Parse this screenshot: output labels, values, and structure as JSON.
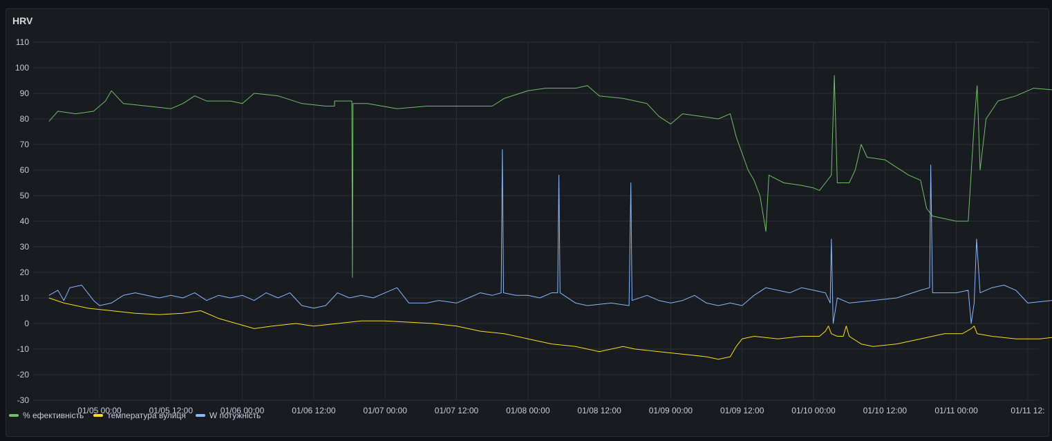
{
  "panel": {
    "title": "HRV"
  },
  "colors": {
    "efficiency": "#73bf69",
    "temperature": "#fade2a",
    "power": "#8ab8ff"
  },
  "chart_data": {
    "type": "line",
    "title": "HRV",
    "ylim": [
      -30,
      110
    ],
    "yticks": [
      110,
      100,
      90,
      80,
      70,
      60,
      50,
      40,
      30,
      20,
      10,
      0,
      -10,
      -20,
      -30
    ],
    "xticks": [
      "01/05 00:00",
      "01/05 12:00",
      "01/06 00:00",
      "01/06 12:00",
      "01/07 00:00",
      "01/07 12:00",
      "01/08 00:00",
      "01/08 12:00",
      "01/09 00:00",
      "01/09 12:00",
      "01/10 00:00",
      "01/10 12:00",
      "01/11 00:00",
      "01/11 12:"
    ],
    "xlim_hours": [
      -8.5,
      155.5
    ],
    "x_unit": "hours since 01/05 00:00",
    "grid": true,
    "legend_position": "bottom-left",
    "series": [
      {
        "name": "% ефективність",
        "color": "#73bf69",
        "points": [
          [
            -8.5,
            79
          ],
          [
            -7,
            83
          ],
          [
            -4,
            82
          ],
          [
            -1,
            83
          ],
          [
            1,
            87
          ],
          [
            2,
            91
          ],
          [
            4,
            86
          ],
          [
            8,
            85
          ],
          [
            12,
            84
          ],
          [
            14,
            86
          ],
          [
            16,
            89
          ],
          [
            18,
            87
          ],
          [
            22,
            87
          ],
          [
            24,
            86
          ],
          [
            26,
            90
          ],
          [
            30,
            89
          ],
          [
            34,
            86
          ],
          [
            38,
            85
          ],
          [
            39.5,
            85
          ],
          [
            39.5,
            87
          ],
          [
            42,
            87
          ],
          [
            42.4,
            87
          ],
          [
            42.5,
            18
          ],
          [
            42.6,
            86
          ],
          [
            45,
            86
          ],
          [
            50,
            84
          ],
          [
            55,
            85
          ],
          [
            60,
            85
          ],
          [
            66,
            85
          ],
          [
            68,
            88
          ],
          [
            72,
            91
          ],
          [
            75,
            92
          ],
          [
            80,
            92
          ],
          [
            82,
            93
          ],
          [
            84,
            89
          ],
          [
            88,
            88
          ],
          [
            92,
            86
          ],
          [
            94,
            81
          ],
          [
            96,
            78
          ],
          [
            98,
            82
          ],
          [
            101,
            81
          ],
          [
            104,
            80
          ],
          [
            106,
            82
          ],
          [
            107,
            73
          ],
          [
            109,
            60
          ],
          [
            110,
            56
          ],
          [
            111,
            50
          ],
          [
            112,
            36
          ],
          [
            112.5,
            58
          ],
          [
            115,
            55
          ],
          [
            118,
            54
          ],
          [
            120,
            53
          ],
          [
            121,
            52
          ],
          [
            122,
            55
          ],
          [
            123,
            58
          ],
          [
            123.5,
            97
          ],
          [
            124,
            55
          ],
          [
            126,
            55
          ],
          [
            127,
            60
          ],
          [
            128,
            70
          ],
          [
            129,
            65
          ],
          [
            132,
            64
          ],
          [
            136,
            58
          ],
          [
            138,
            56
          ],
          [
            139,
            45
          ],
          [
            140,
            42
          ],
          [
            144,
            40
          ],
          [
            146,
            40
          ],
          [
            147,
            78
          ],
          [
            147.5,
            93
          ],
          [
            148,
            60
          ],
          [
            149,
            80
          ],
          [
            151,
            87
          ],
          [
            154,
            89
          ],
          [
            157,
            92
          ],
          [
            162,
            91
          ],
          [
            165,
            89
          ],
          [
            166,
            86
          ],
          [
            168,
            84
          ],
          [
            169,
            87
          ],
          [
            170,
            89
          ]
        ]
      },
      {
        "name": "температура вулиця",
        "color": "#fade2a",
        "points": [
          [
            -8.5,
            10
          ],
          [
            -6,
            8
          ],
          [
            -2,
            6
          ],
          [
            2,
            5
          ],
          [
            6,
            4
          ],
          [
            10,
            3.5
          ],
          [
            14,
            4
          ],
          [
            17,
            5
          ],
          [
            20,
            2
          ],
          [
            23,
            0
          ],
          [
            26,
            -2
          ],
          [
            29,
            -1
          ],
          [
            33,
            0
          ],
          [
            36,
            -1
          ],
          [
            40,
            0
          ],
          [
            44,
            1
          ],
          [
            48,
            1
          ],
          [
            52,
            0.5
          ],
          [
            56,
            0
          ],
          [
            60,
            -1
          ],
          [
            64,
            -3
          ],
          [
            68,
            -4
          ],
          [
            72,
            -6
          ],
          [
            76,
            -8
          ],
          [
            80,
            -9
          ],
          [
            84,
            -11
          ],
          [
            86,
            -10
          ],
          [
            88,
            -9
          ],
          [
            90,
            -10
          ],
          [
            94,
            -11
          ],
          [
            98,
            -12
          ],
          [
            102,
            -13
          ],
          [
            104,
            -14
          ],
          [
            106,
            -13
          ],
          [
            107,
            -9
          ],
          [
            108,
            -6
          ],
          [
            110,
            -5
          ],
          [
            114,
            -6
          ],
          [
            118,
            -5
          ],
          [
            121,
            -5
          ],
          [
            122,
            -3
          ],
          [
            122.5,
            -1
          ],
          [
            123,
            -4
          ],
          [
            124,
            -5
          ],
          [
            125,
            -5
          ],
          [
            125.5,
            -1
          ],
          [
            126,
            -5
          ],
          [
            128,
            -8
          ],
          [
            130,
            -9
          ],
          [
            134,
            -8
          ],
          [
            138,
            -6
          ],
          [
            142,
            -4
          ],
          [
            145,
            -4
          ],
          [
            146.5,
            -2
          ],
          [
            147,
            -1
          ],
          [
            147.5,
            -4
          ],
          [
            150,
            -5
          ],
          [
            154,
            -6
          ],
          [
            158,
            -6
          ],
          [
            162,
            -5
          ],
          [
            165,
            -3
          ],
          [
            168,
            -1
          ],
          [
            170,
            0
          ]
        ]
      },
      {
        "name": "W потужність",
        "color": "#8ab8ff",
        "points": [
          [
            -8.5,
            11
          ],
          [
            -7,
            13
          ],
          [
            -6,
            9
          ],
          [
            -5,
            14
          ],
          [
            -3,
            15
          ],
          [
            -1,
            9
          ],
          [
            0,
            7
          ],
          [
            2,
            8
          ],
          [
            4,
            11
          ],
          [
            6,
            12
          ],
          [
            10,
            10
          ],
          [
            12,
            11
          ],
          [
            14,
            10
          ],
          [
            16,
            12
          ],
          [
            18,
            9
          ],
          [
            20,
            11
          ],
          [
            22,
            10
          ],
          [
            24,
            11
          ],
          [
            26,
            9
          ],
          [
            28,
            12
          ],
          [
            30,
            10
          ],
          [
            32,
            12
          ],
          [
            34,
            7
          ],
          [
            36,
            6
          ],
          [
            38,
            7
          ],
          [
            40,
            12
          ],
          [
            42,
            10
          ],
          [
            44,
            11
          ],
          [
            46,
            10
          ],
          [
            48,
            12
          ],
          [
            50,
            14
          ],
          [
            52,
            8
          ],
          [
            55,
            8
          ],
          [
            57,
            9
          ],
          [
            60,
            8
          ],
          [
            62,
            10
          ],
          [
            64,
            12
          ],
          [
            66,
            11
          ],
          [
            67.5,
            12
          ],
          [
            67.7,
            68
          ],
          [
            67.9,
            12
          ],
          [
            70,
            11
          ],
          [
            72,
            11
          ],
          [
            74,
            10
          ],
          [
            76,
            12
          ],
          [
            77,
            12
          ],
          [
            77.2,
            58
          ],
          [
            77.4,
            12
          ],
          [
            80,
            8
          ],
          [
            82,
            7
          ],
          [
            86,
            8
          ],
          [
            89,
            7
          ],
          [
            89.3,
            55
          ],
          [
            89.5,
            9
          ],
          [
            92,
            11
          ],
          [
            94,
            9
          ],
          [
            96,
            8
          ],
          [
            98,
            9
          ],
          [
            100,
            11
          ],
          [
            102,
            8
          ],
          [
            104,
            7
          ],
          [
            106,
            8
          ],
          [
            108,
            7
          ],
          [
            110,
            11
          ],
          [
            112,
            14
          ],
          [
            114,
            13
          ],
          [
            116,
            12
          ],
          [
            118,
            14
          ],
          [
            120,
            13
          ],
          [
            122,
            12
          ],
          [
            122.8,
            8
          ],
          [
            123,
            33
          ],
          [
            123.3,
            0
          ],
          [
            124,
            10
          ],
          [
            126,
            8
          ],
          [
            130,
            9
          ],
          [
            134,
            10
          ],
          [
            138,
            13
          ],
          [
            139.5,
            14
          ],
          [
            139.7,
            62
          ],
          [
            140,
            12
          ],
          [
            144,
            12
          ],
          [
            146,
            13
          ],
          [
            146.5,
            0
          ],
          [
            147,
            8
          ],
          [
            147.4,
            33
          ],
          [
            148,
            12
          ],
          [
            150,
            14
          ],
          [
            152,
            15
          ],
          [
            154,
            13
          ],
          [
            156,
            8
          ],
          [
            160,
            9
          ],
          [
            164,
            8
          ],
          [
            166,
            12
          ],
          [
            168,
            14
          ],
          [
            170,
            8
          ]
        ]
      }
    ]
  }
}
